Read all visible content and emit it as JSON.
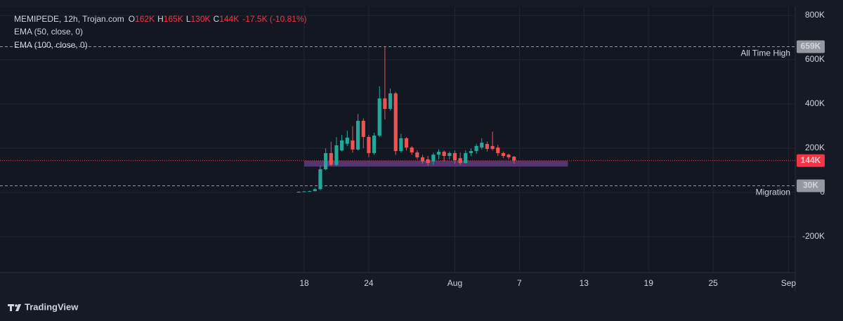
{
  "chart_data": {
    "type": "candlestick",
    "legend": {
      "symbol": "MEMIPEDE, 12h, Trojan.com",
      "ohlc": [
        {
          "key": "O",
          "text": "162K"
        },
        {
          "key": "H",
          "text": "165K"
        },
        {
          "key": "L",
          "text": "130K"
        },
        {
          "key": "C",
          "text": "144K"
        }
      ],
      "change": "-17.5K (-10.81%)",
      "indicators": [
        "EMA (50, close, 0)",
        "EMA (100, close, 0)"
      ]
    },
    "up_color": "#26a69a",
    "down_color": "#ef5350",
    "grid": true,
    "categories": [
      null,
      "18",
      null,
      null,
      null,
      null,
      null,
      null,
      null,
      null,
      null,
      null,
      null,
      "24",
      null,
      null,
      null,
      null,
      null,
      null,
      null,
      null,
      null,
      null,
      null,
      null,
      null,
      null,
      null,
      "Aug",
      null,
      null,
      null,
      null,
      null,
      null,
      null,
      null,
      null,
      null,
      null,
      "7",
      null,
      null,
      null,
      null,
      null,
      null,
      null,
      null,
      null,
      null,
      null,
      "13",
      null,
      null,
      null,
      null,
      null,
      null,
      null,
      null,
      null,
      null,
      null,
      "19",
      null,
      null,
      null,
      null,
      null,
      null,
      null,
      null,
      null,
      null,
      null,
      "25",
      null,
      null,
      null,
      null,
      null,
      null,
      null,
      null,
      null,
      null,
      null,
      null,
      null,
      "Sep"
    ],
    "open": [
      2000,
      3000,
      5000,
      6000,
      15000,
      105000,
      178000,
      125000,
      190000,
      220000,
      235000,
      194000,
      324000,
      251000,
      178000,
      257000,
      425000,
      378000,
      448000,
      187000,
      245000,
      203000,
      181000,
      159000,
      150000,
      140000,
      171000,
      184000,
      165000,
      178000,
      155000,
      133000,
      178000,
      187000,
      203000,
      219000,
      210000,
      203000,
      178000,
      171000,
      162000,
      null,
      null,
      null,
      null,
      null,
      null,
      null,
      null,
      null,
      null,
      null,
      null,
      null,
      null,
      null,
      null,
      null,
      null,
      null,
      null,
      null,
      null,
      null,
      null,
      null,
      null,
      null,
      null,
      null,
      null,
      null,
      null,
      null,
      null,
      null,
      null,
      null,
      null,
      null,
      null,
      null,
      null,
      null,
      null,
      null,
      null,
      null,
      null,
      null,
      null,
      null
    ],
    "high": [
      5000,
      6000,
      8000,
      20000,
      120000,
      200000,
      230000,
      250000,
      260000,
      280000,
      300000,
      355000,
      335000,
      260000,
      270000,
      480000,
      659000,
      470000,
      455000,
      265000,
      250000,
      210000,
      190000,
      170000,
      165000,
      180000,
      195000,
      190000,
      185000,
      190000,
      180000,
      190000,
      200000,
      220000,
      245000,
      230000,
      275000,
      215000,
      185000,
      175000,
      165000,
      null,
      null,
      null,
      null,
      null,
      null,
      null,
      null,
      null,
      null,
      null,
      null,
      null,
      null,
      null,
      null,
      null,
      null,
      null,
      null,
      null,
      null,
      null,
      null,
      null,
      null,
      null,
      null,
      null,
      null,
      null,
      null,
      null,
      null,
      null,
      null,
      null,
      null,
      null,
      null,
      null,
      null,
      null,
      null,
      null,
      null,
      null,
      null,
      null,
      null,
      null
    ],
    "low": [
      1000,
      2000,
      3000,
      5000,
      10000,
      100000,
      120000,
      120000,
      185000,
      210000,
      180000,
      190000,
      200000,
      160000,
      170000,
      250000,
      330000,
      370000,
      170000,
      180000,
      190000,
      170000,
      150000,
      130000,
      120000,
      125000,
      150000,
      140000,
      150000,
      130000,
      125000,
      130000,
      165000,
      175000,
      195000,
      185000,
      190000,
      165000,
      155000,
      150000,
      130000,
      null,
      null,
      null,
      null,
      null,
      null,
      null,
      null,
      null,
      null,
      null,
      null,
      null,
      null,
      null,
      null,
      null,
      null,
      null,
      null,
      null,
      null,
      null,
      null,
      null,
      null,
      null,
      null,
      null,
      null,
      null,
      null,
      null,
      null,
      null,
      null,
      null,
      null,
      null,
      null,
      null,
      null,
      null,
      null,
      null,
      null,
      null,
      null,
      null,
      null,
      null
    ],
    "close": [
      3000,
      5000,
      6000,
      15000,
      105000,
      178000,
      125000,
      213000,
      235000,
      248000,
      194000,
      324000,
      251000,
      178000,
      257000,
      425000,
      378000,
      448000,
      187000,
      245000,
      203000,
      181000,
      159000,
      140000,
      133000,
      171000,
      184000,
      165000,
      178000,
      146000,
      133000,
      178000,
      187000,
      210000,
      225000,
      197000,
      197000,
      178000,
      165000,
      159000,
      144000,
      null,
      null,
      null,
      null,
      null,
      null,
      null,
      null,
      null,
      null,
      null,
      null,
      null,
      null,
      null,
      null,
      null,
      null,
      null,
      null,
      null,
      null,
      null,
      null,
      null,
      null,
      null,
      null,
      null,
      null,
      null,
      null,
      null,
      null,
      null,
      null,
      null,
      null,
      null,
      null,
      null,
      null,
      null,
      null,
      null,
      null,
      null,
      null,
      null,
      null,
      null
    ],
    "ylim": [
      -362000,
      832000
    ],
    "yticks": [
      {
        "value": 800000,
        "label": "800K"
      },
      {
        "value": 600000,
        "label": "600K"
      },
      {
        "value": 400000,
        "label": "400K"
      },
      {
        "value": 200000,
        "label": "200K"
      },
      0,
      {
        "value": -200000,
        "label": "-200K"
      }
    ],
    "levels": [
      {
        "value": 659000,
        "label": "659K",
        "text": "All Time High"
      },
      {
        "value": 30000,
        "label": "30K",
        "text": "Migration"
      }
    ],
    "last_price": {
      "value": 144000,
      "label": "144K",
      "color": "#f23645"
    },
    "zone": {
      "low": 117000,
      "high": 143000,
      "start": 1,
      "end": 50,
      "color": "#5b3a78"
    },
    "brand": "TradingView"
  }
}
